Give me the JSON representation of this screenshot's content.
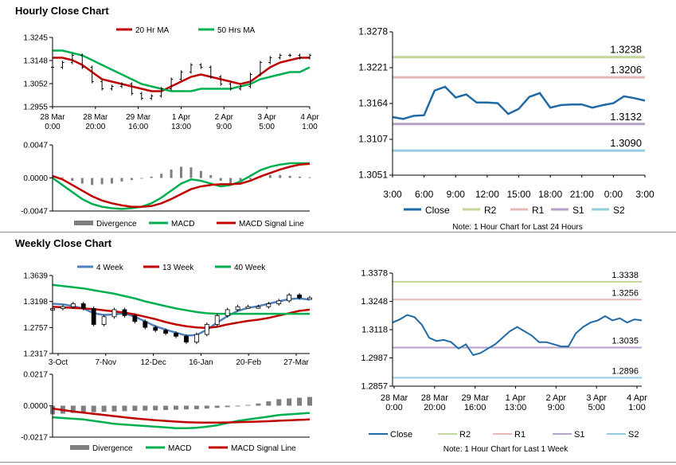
{
  "sections": {
    "hourly_title": "Hourly Close Chart",
    "weekly_title": "Weekly Close Chart"
  },
  "colors": {
    "ma_short": "#c00000",
    "ma_long": "#00b050",
    "ma_mid": "#4f81bd",
    "divergence": "#7f7f7f",
    "close": "#1f6aa5",
    "r2": "#c3d69b",
    "r1": "#e6b9b8",
    "s1": "#b3a2c7",
    "s2": "#93cddd"
  },
  "chart_data": [
    {
      "id": "hourly_price",
      "type": "line",
      "legend": [
        "20 Hr MA",
        "50 Hrs MA"
      ],
      "y_ticks": [
        "1.3245",
        "1.3148",
        "1.3052",
        "1.2955"
      ],
      "ylim": [
        1.2955,
        1.3245
      ],
      "x_labels": [
        [
          "28 Mar",
          "0:00"
        ],
        [
          "28 Mar",
          "20:00"
        ],
        [
          "29 Mar",
          "16:00"
        ],
        [
          "1 Apr",
          "13:00"
        ],
        [
          "2 Apr",
          "9:00"
        ],
        [
          "3 Apr",
          "5:00"
        ],
        [
          "4 Apr",
          "1:00"
        ]
      ],
      "series": [
        {
          "name": "Price",
          "values": [
            1.312,
            1.314,
            1.317,
            1.312,
            1.306,
            1.303,
            1.304,
            1.305,
            1.301,
            1.299,
            1.3,
            1.303,
            1.307,
            1.31,
            1.313,
            1.312,
            1.308,
            1.305,
            1.303,
            1.304,
            1.309,
            1.314,
            1.316,
            1.317,
            1.317,
            1.316,
            1.317
          ]
        },
        {
          "name": "20 Hr MA",
          "values": [
            1.316,
            1.316,
            1.315,
            1.313,
            1.31,
            1.307,
            1.306,
            1.305,
            1.304,
            1.303,
            1.302,
            1.302,
            1.304,
            1.306,
            1.308,
            1.309,
            1.308,
            1.307,
            1.306,
            1.305,
            1.306,
            1.309,
            1.312,
            1.314,
            1.315,
            1.316,
            1.316
          ]
        },
        {
          "name": "50 Hrs MA",
          "values": [
            1.319,
            1.319,
            1.318,
            1.317,
            1.315,
            1.313,
            1.311,
            1.309,
            1.307,
            1.305,
            1.304,
            1.303,
            1.302,
            1.302,
            1.302,
            1.303,
            1.303,
            1.303,
            1.303,
            1.304,
            1.305,
            1.307,
            1.308,
            1.309,
            1.31,
            1.31,
            1.312
          ]
        }
      ]
    },
    {
      "id": "hourly_macd",
      "type": "bar",
      "legend": [
        "Divergence",
        "MACD",
        "MACD Signal Line"
      ],
      "y_ticks": [
        "0.0047",
        "0.0000",
        "-0.0047"
      ],
      "ylim": [
        -0.0047,
        0.0047
      ],
      "divergence": [
        0.0002,
        0.0001,
        -0.0004,
        -0.0008,
        -0.001,
        -0.0009,
        -0.0008,
        -0.0005,
        -0.0003,
        -0.0001,
        0.0002,
        0.0006,
        0.0012,
        0.0016,
        0.0015,
        0.001,
        0.0004,
        -0.0004,
        -0.0008,
        -0.0006,
        -0.0002,
        0.0002,
        0.0004,
        0.0004,
        0.0003,
        0.0002,
        0.0001
      ],
      "series": [
        {
          "name": "MACD",
          "values": [
            0.0,
            -0.001,
            -0.002,
            -0.003,
            -0.0037,
            -0.0041,
            -0.0043,
            -0.0044,
            -0.0043,
            -0.0041,
            -0.0036,
            -0.0028,
            -0.0018,
            -0.0008,
            -0.0002,
            -0.0004,
            -0.0008,
            -0.0012,
            -0.001,
            -0.0005,
            0.0003,
            0.0011,
            0.0016,
            0.0019,
            0.0021,
            0.0021,
            0.0021
          ]
        },
        {
          "name": "MACD Signal Line",
          "values": [
            0.0003,
            -0.0002,
            -0.001,
            -0.0018,
            -0.0026,
            -0.0032,
            -0.0036,
            -0.0039,
            -0.0041,
            -0.0041,
            -0.004,
            -0.0036,
            -0.003,
            -0.0023,
            -0.0016,
            -0.0012,
            -0.001,
            -0.0009,
            -0.0009,
            -0.0008,
            -0.0004,
            0.0002,
            0.0007,
            0.0012,
            0.0016,
            0.0019,
            0.002
          ]
        }
      ]
    },
    {
      "id": "hourly_close",
      "type": "line",
      "legend": [
        "Close",
        "R2",
        "R1",
        "S1",
        "S2"
      ],
      "note": "Note: 1 Hour Chart for Last 24 Hours",
      "y_ticks": [
        "1.3278",
        "1.3221",
        "1.3164",
        "1.3107",
        "1.3051"
      ],
      "ylim": [
        1.3051,
        1.3278
      ],
      "x_labels": [
        "3:00",
        "6:00",
        "9:00",
        "12:00",
        "15:00",
        "18:00",
        "21:00",
        "0:00",
        "3:00"
      ],
      "levels": [
        {
          "name": "R2",
          "value": 1.3238,
          "label": "1.3238"
        },
        {
          "name": "R1",
          "value": 1.3206,
          "label": "1.3206"
        },
        {
          "name": "S1",
          "value": 1.3132,
          "label": "1.3132"
        },
        {
          "name": "S2",
          "value": 1.309,
          "label": "1.3090"
        }
      ],
      "series": [
        {
          "name": "Close",
          "values": [
            1.3143,
            1.314,
            1.3145,
            1.3146,
            1.3185,
            1.3191,
            1.3174,
            1.3179,
            1.3166,
            1.3166,
            1.3165,
            1.3148,
            1.3156,
            1.3175,
            1.3181,
            1.3158,
            1.3162,
            1.3163,
            1.3163,
            1.3158,
            1.3162,
            1.3165,
            1.3176,
            1.3173,
            1.3169
          ]
        }
      ]
    },
    {
      "id": "weekly_price",
      "type": "line",
      "legend": [
        "4 Week",
        "13 Week",
        "40 Week"
      ],
      "y_ticks": [
        "1.3639",
        "1.3198",
        "1.2757",
        "1.2317"
      ],
      "ylim": [
        1.2317,
        1.3639
      ],
      "x_labels": [
        "3-Oct",
        "7-Nov",
        "12-Dec",
        "16-Jan",
        "20-Feb",
        "27-Mar"
      ],
      "series": [
        {
          "name": "Price",
          "values": [
            1.308,
            1.311,
            1.316,
            1.308,
            1.281,
            1.294,
            1.306,
            1.296,
            1.286,
            1.276,
            1.271,
            1.266,
            1.261,
            1.251,
            1.264,
            1.281,
            1.296,
            1.306,
            1.311,
            1.311,
            1.311,
            1.316,
            1.321,
            1.331,
            1.326,
            1.326
          ]
        },
        {
          "name": "4 Week",
          "values": [
            1.316,
            1.315,
            1.312,
            1.308,
            1.3,
            1.297,
            1.298,
            1.3,
            1.294,
            1.286,
            1.278,
            1.272,
            1.267,
            1.262,
            1.263,
            1.272,
            1.284,
            1.295,
            1.304,
            1.309,
            1.312,
            1.316,
            1.32,
            1.324,
            1.325,
            1.323
          ]
        },
        {
          "name": "13 Week",
          "values": [
            1.311,
            1.31,
            1.309,
            1.308,
            1.307,
            1.305,
            1.303,
            1.301,
            1.298,
            1.294,
            1.29,
            1.285,
            1.281,
            1.278,
            1.276,
            1.275,
            1.277,
            1.281,
            1.284,
            1.287,
            1.289,
            1.292,
            1.296,
            1.3,
            1.304,
            1.306
          ]
        },
        {
          "name": "40 Week",
          "values": [
            1.348,
            1.346,
            1.344,
            1.342,
            1.339,
            1.336,
            1.333,
            1.329,
            1.325,
            1.32,
            1.316,
            1.312,
            1.308,
            1.305,
            1.302,
            1.3,
            1.299,
            1.299,
            1.299,
            1.299,
            1.299,
            1.299,
            1.299,
            1.299,
            1.299,
            1.299
          ]
        }
      ]
    },
    {
      "id": "weekly_macd",
      "type": "bar",
      "legend": [
        "Divergence",
        "MACD",
        "MACD Signal Line"
      ],
      "y_ticks": [
        "0.0217",
        "0.0000",
        "-0.0217"
      ],
      "ylim": [
        -0.0217,
        0.0217
      ],
      "divergence": [
        -0.006,
        -0.0055,
        -0.005,
        -0.0048,
        -0.0045,
        -0.0042,
        -0.004,
        -0.0038,
        -0.0036,
        -0.0034,
        -0.0032,
        -0.003,
        -0.0028,
        -0.0026,
        -0.0024,
        -0.002,
        -0.0015,
        -0.001,
        -0.0005,
        0.0005,
        0.0015,
        0.003,
        0.0045,
        0.005,
        0.0055,
        0.006
      ],
      "series": [
        {
          "name": "MACD",
          "values": [
            -0.008,
            -0.0085,
            -0.009,
            -0.0095,
            -0.0105,
            -0.0115,
            -0.0125,
            -0.013,
            -0.0135,
            -0.014,
            -0.0145,
            -0.015,
            -0.0155,
            -0.0155,
            -0.0152,
            -0.0145,
            -0.0135,
            -0.012,
            -0.0105,
            -0.0095,
            -0.0085,
            -0.0075,
            -0.0065,
            -0.006,
            -0.0055,
            -0.005
          ]
        },
        {
          "name": "MACD Signal Line",
          "values": [
            -0.002,
            -0.003,
            -0.004,
            -0.0048,
            -0.0056,
            -0.0064,
            -0.0072,
            -0.008,
            -0.0088,
            -0.0094,
            -0.01,
            -0.0105,
            -0.011,
            -0.0114,
            -0.0116,
            -0.0117,
            -0.0117,
            -0.0116,
            -0.0114,
            -0.0112,
            -0.011,
            -0.0107,
            -0.0104,
            -0.0101,
            -0.0098,
            -0.0095
          ]
        }
      ]
    },
    {
      "id": "weekly_close",
      "type": "line",
      "legend": [
        "Close",
        "R2",
        "R1",
        "S1",
        "S2"
      ],
      "note": "Note: 1 Hour Chart for Last 1 Week",
      "y_ticks": [
        "1.3378",
        "1.3248",
        "1.3118",
        "1.2987",
        "1.2857"
      ],
      "ylim": [
        1.2857,
        1.3378
      ],
      "x_labels": [
        [
          "28 Mar",
          "0:00"
        ],
        [
          "28 Mar",
          "20:00"
        ],
        [
          "29 Mar",
          "16:00"
        ],
        [
          "1 Apr",
          "13:00"
        ],
        [
          "2 Apr",
          "9:00"
        ],
        [
          "3 Apr",
          "5:00"
        ],
        [
          "4 Apr",
          "1:00"
        ]
      ],
      "levels": [
        {
          "name": "R2",
          "value": 1.3338,
          "label": "1.3338"
        },
        {
          "name": "R1",
          "value": 1.3256,
          "label": "1.3256"
        },
        {
          "name": "S1",
          "value": 1.3035,
          "label": "1.3035"
        },
        {
          "name": "S2",
          "value": 1.2896,
          "label": "1.2896"
        }
      ],
      "series": [
        {
          "name": "Close",
          "values": [
            1.315,
            1.3165,
            1.3185,
            1.3175,
            1.314,
            1.308,
            1.3065,
            1.307,
            1.306,
            1.303,
            1.305,
            1.3,
            1.301,
            1.303,
            1.305,
            1.308,
            1.311,
            1.313,
            1.311,
            1.309,
            1.306,
            1.306,
            1.305,
            1.304,
            1.304,
            1.31,
            1.313,
            1.315,
            1.316,
            1.318,
            1.316,
            1.317,
            1.315,
            1.3165,
            1.316
          ]
        }
      ]
    }
  ]
}
